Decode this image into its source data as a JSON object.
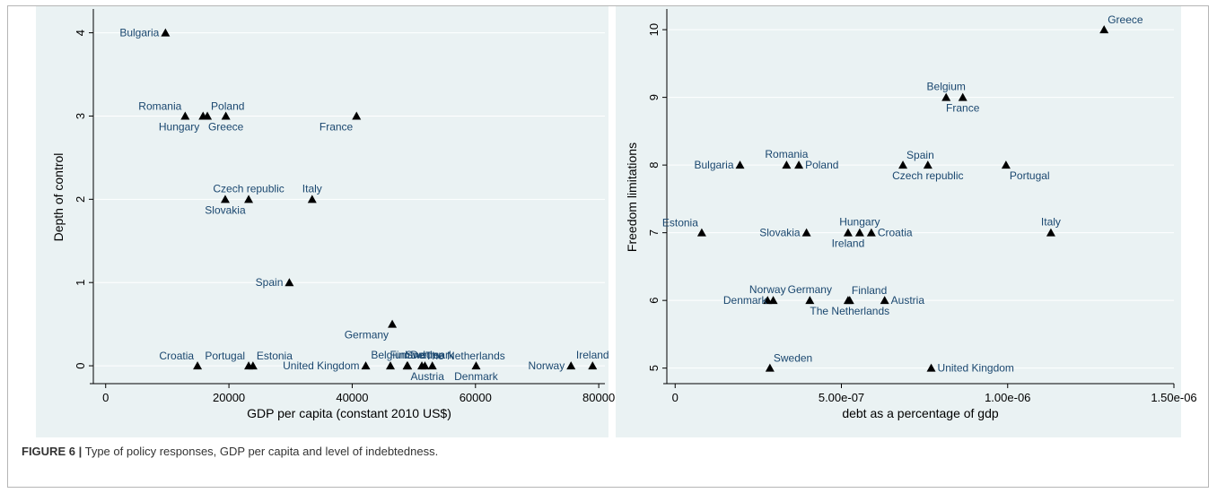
{
  "caption": {
    "label": "FIGURE 6 |",
    "text": "Type of policy responses, GDP per capita and level of indebtedness."
  },
  "colors": {
    "plot_bg": "#eaf2f3",
    "grid": "#ffffff",
    "marker": "#000000",
    "label": "#1a476f",
    "axis": "#000000"
  },
  "chart_data": [
    {
      "type": "scatter",
      "title": "",
      "xlabel": "GDP per capita (constant 2010 US$)",
      "ylabel": "Depth of control",
      "xlim": [
        -2000,
        81000
      ],
      "ylim": [
        -0.15,
        4.2
      ],
      "xticks": [
        0,
        20000,
        40000,
        60000,
        80000
      ],
      "xtick_labels": [
        "0",
        "20000",
        "40000",
        "60000",
        "80000"
      ],
      "yticks": [
        0,
        1,
        2,
        3,
        4
      ],
      "ytick_labels": [
        "0",
        "1",
        "2",
        "3",
        "4"
      ],
      "grid": true,
      "points": [
        {
          "label": "Bulgaria",
          "x": 9700,
          "y": 4,
          "pos": "left"
        },
        {
          "label": "Romania",
          "x": 12900,
          "y": 3,
          "pos": "upper-left"
        },
        {
          "label": "Hungary",
          "x": 15800,
          "y": 3,
          "pos": "lower-left"
        },
        {
          "label": "Poland",
          "x": 16500,
          "y": 3,
          "pos": "upper-right"
        },
        {
          "label": "Greece",
          "x": 19500,
          "y": 3,
          "pos": "below"
        },
        {
          "label": "France",
          "x": 40700,
          "y": 3,
          "pos": "lower-left"
        },
        {
          "label": "Czech republic",
          "x": 23200,
          "y": 2,
          "pos": "above"
        },
        {
          "label": "Italy",
          "x": 33500,
          "y": 2,
          "pos": "above"
        },
        {
          "label": "Slovakia",
          "x": 19400,
          "y": 2,
          "pos": "below"
        },
        {
          "label": "Spain",
          "x": 29800,
          "y": 1,
          "pos": "left"
        },
        {
          "label": "Germany",
          "x": 46500,
          "y": 0.5,
          "pos": "lower-left"
        },
        {
          "label": "Croatia",
          "x": 14900,
          "y": 0,
          "pos": "upper-left"
        },
        {
          "label": "Portugal",
          "x": 23200,
          "y": 0,
          "pos": "upper-left"
        },
        {
          "label": "Estonia",
          "x": 23900,
          "y": 0,
          "pos": "upper-right"
        },
        {
          "label": "United Kingdom",
          "x": 42200,
          "y": 0,
          "pos": "left"
        },
        {
          "label": "Belgium",
          "x": 46200,
          "y": 0,
          "pos": "upper-center"
        },
        {
          "label": "Finland",
          "x": 49000,
          "y": 0,
          "pos": "upper-center"
        },
        {
          "label": "Austria",
          "x": 48900,
          "y": 0,
          "pos": "lower-right"
        },
        {
          "label": "Sweden",
          "x": 51800,
          "y": 0,
          "pos": "upper-center"
        },
        {
          "label": "Denmark",
          "x": 53000,
          "y": 0,
          "pos": "upper-center"
        },
        {
          "label": "The Netherlands",
          "x": 51300,
          "y": 0,
          "pos": "upper-right"
        },
        {
          "label": "Denmark",
          "x": 60100,
          "y": 0,
          "pos": "below"
        },
        {
          "label": "Norway",
          "x": 75500,
          "y": 0,
          "pos": "left"
        },
        {
          "label": "Ireland",
          "x": 79000,
          "y": 0,
          "pos": "above"
        }
      ]
    },
    {
      "type": "scatter",
      "title": "",
      "xlabel": "debt as a percentage of gdp",
      "ylabel": "Freedom limitations",
      "xlim": [
        -2.5e-08,
        1.5e-06
      ],
      "ylim": [
        4.85,
        10.2
      ],
      "xticks": [
        0,
        5e-07,
        1e-06,
        1.5e-06
      ],
      "xtick_labels": [
        "0",
        "5.00e-07",
        "1.00e-06",
        "1.50e-06"
      ],
      "yticks": [
        5,
        6,
        7,
        8,
        9,
        10
      ],
      "ytick_labels": [
        "5",
        "6",
        "7",
        "8",
        "9",
        "10"
      ],
      "grid": true,
      "points": [
        {
          "label": "Greece",
          "x": 1.29e-06,
          "y": 10,
          "pos": "upper-right"
        },
        {
          "label": "Belgium",
          "x": 8.15e-07,
          "y": 9,
          "pos": "upper-center"
        },
        {
          "label": "France",
          "x": 8.65e-07,
          "y": 9,
          "pos": "below"
        },
        {
          "label": "Bulgaria",
          "x": 1.95e-07,
          "y": 8,
          "pos": "left"
        },
        {
          "label": "Romania",
          "x": 3.35e-07,
          "y": 8,
          "pos": "upper-center"
        },
        {
          "label": "Poland",
          "x": 3.72e-07,
          "y": 8,
          "pos": "right"
        },
        {
          "label": "Spain",
          "x": 6.85e-07,
          "y": 8,
          "pos": "upper-right"
        },
        {
          "label": "Czech republic",
          "x": 7.6e-07,
          "y": 8,
          "pos": "below"
        },
        {
          "label": "Portugal",
          "x": 9.95e-07,
          "y": 8,
          "pos": "lower-right"
        },
        {
          "label": "Estonia",
          "x": 8e-08,
          "y": 7,
          "pos": "upper-left"
        },
        {
          "label": "Slovakia",
          "x": 3.95e-07,
          "y": 7,
          "pos": "left"
        },
        {
          "label": "Hungary",
          "x": 5.55e-07,
          "y": 7,
          "pos": "upper-center"
        },
        {
          "label": "Ireland",
          "x": 5.2e-07,
          "y": 7,
          "pos": "below"
        },
        {
          "label": "Croatia",
          "x": 5.9e-07,
          "y": 7,
          "pos": "right"
        },
        {
          "label": "Italy",
          "x": 1.13e-06,
          "y": 7,
          "pos": "upper-center"
        },
        {
          "label": "Norway",
          "x": 2.78e-07,
          "y": 6,
          "pos": "upper-center"
        },
        {
          "label": "Denmark",
          "x": 2.95e-07,
          "y": 6,
          "pos": "left"
        },
        {
          "label": "Germany",
          "x": 4.05e-07,
          "y": 6,
          "pos": "upper-center"
        },
        {
          "label": "The Netherlands",
          "x": 5.25e-07,
          "y": 6,
          "pos": "below"
        },
        {
          "label": "Finland",
          "x": 5.2e-07,
          "y": 6,
          "pos": "upper-right"
        },
        {
          "label": "Austria",
          "x": 6.3e-07,
          "y": 6,
          "pos": "right"
        },
        {
          "label": "Sweden",
          "x": 2.85e-07,
          "y": 5,
          "pos": "upper-right"
        },
        {
          "label": "United Kingdom",
          "x": 7.7e-07,
          "y": 5,
          "pos": "right"
        }
      ]
    }
  ]
}
